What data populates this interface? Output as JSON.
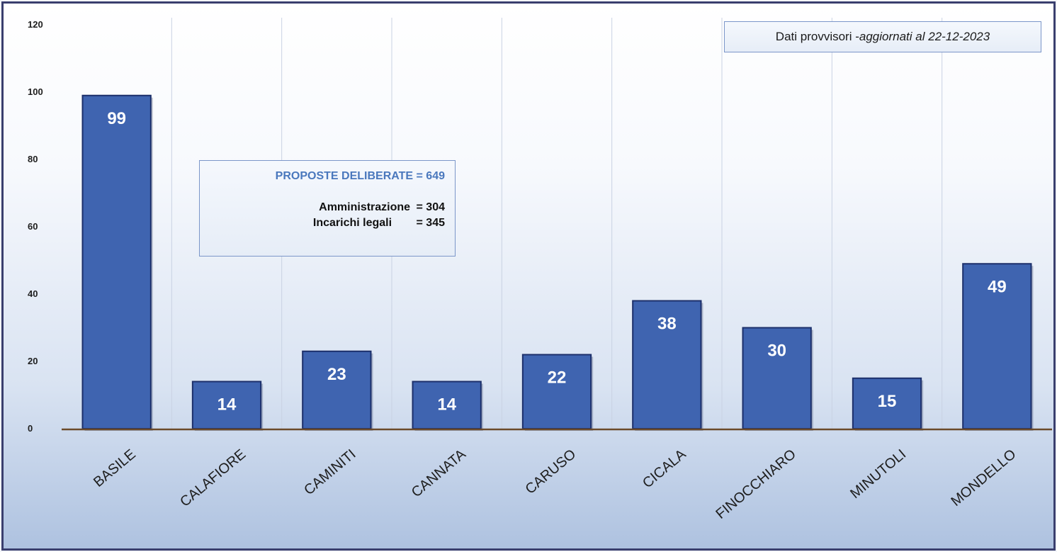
{
  "chart_data": {
    "type": "bar",
    "title": "",
    "xlabel": "",
    "ylabel": "",
    "ylim": [
      0,
      120
    ],
    "yticks": [
      0,
      20,
      40,
      60,
      80,
      100,
      120
    ],
    "grid": "vertical",
    "categories": [
      "BASILE",
      "CALAFIORE",
      "CAMINITI",
      "CANNATA",
      "CARUSO",
      "CICALA",
      "FINOCCHIARO",
      "MINUTOLI",
      "MONDELLO"
    ],
    "values": [
      99,
      14,
      23,
      14,
      22,
      38,
      30,
      15,
      49
    ],
    "bar_color": "#3f64b0",
    "bar_border": "#1c2f6a",
    "label_color": "#ffffff"
  },
  "source_note": {
    "text": "Dati provvisori - ",
    "italic": "aggiornati al 22-12-2023"
  },
  "summary": {
    "headline": "PROPOSTE DELIBERATE = 649",
    "rows": [
      {
        "label": "Amministrazione",
        "value": "= 304"
      },
      {
        "label": "Incarichi legali",
        "value": "= 345"
      }
    ],
    "headline_color": "#4a78bd"
  }
}
